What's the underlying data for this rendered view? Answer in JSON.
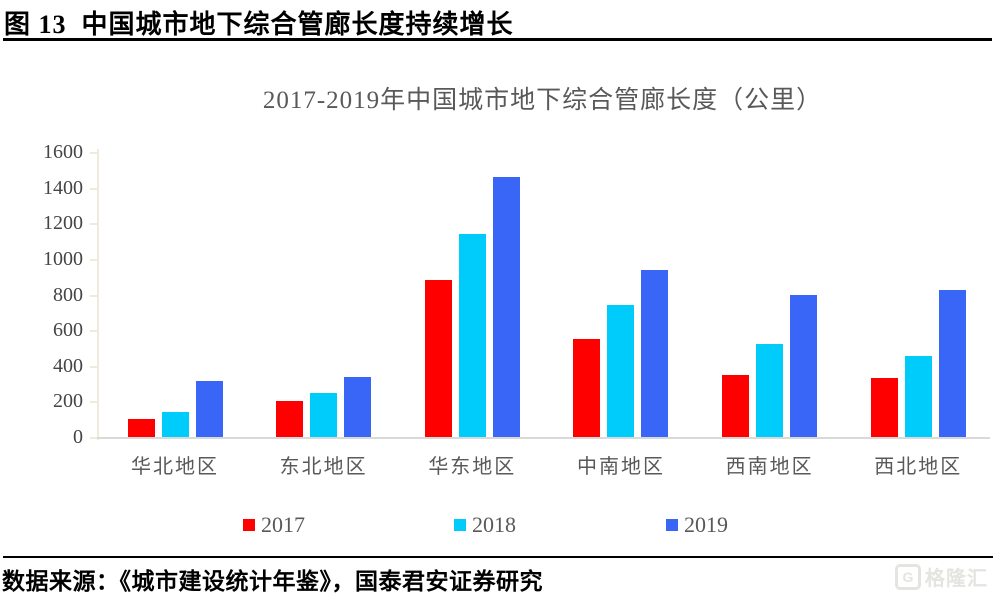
{
  "figure": {
    "caption": "图 13  中国城市地下综合管廊长度持续增长",
    "source": "数据来源：《城市建设统计年鉴》，国泰君安证券研究",
    "watermark": "格隆汇",
    "watermark_letter": "G"
  },
  "chart_data": {
    "type": "bar",
    "title": "2017-2019年中国城市地下综合管廊长度（公里）",
    "categories": [
      "华北地区",
      "东北地区",
      "华东地区",
      "中南地区",
      "西南地区",
      "西北地区"
    ],
    "series": [
      {
        "name": "2017",
        "color": "#fe0000",
        "values": [
          100,
          200,
          880,
          550,
          350,
          330
        ]
      },
      {
        "name": "2018",
        "color": "#00ccfb",
        "values": [
          140,
          245,
          1140,
          740,
          520,
          455
        ]
      },
      {
        "name": "2019",
        "color": "#3a66f8",
        "values": [
          315,
          335,
          1460,
          940,
          800,
          825
        ]
      }
    ],
    "ylim": [
      0,
      1600
    ],
    "ytick_step": 200,
    "grid": false,
    "legend_position": "bottom",
    "axis_line_color": "#efebdc",
    "baseline_color": "#d9d9d9",
    "tick_label_color": "#454545",
    "category_label_color": "#595959",
    "title_color": "#595959"
  }
}
